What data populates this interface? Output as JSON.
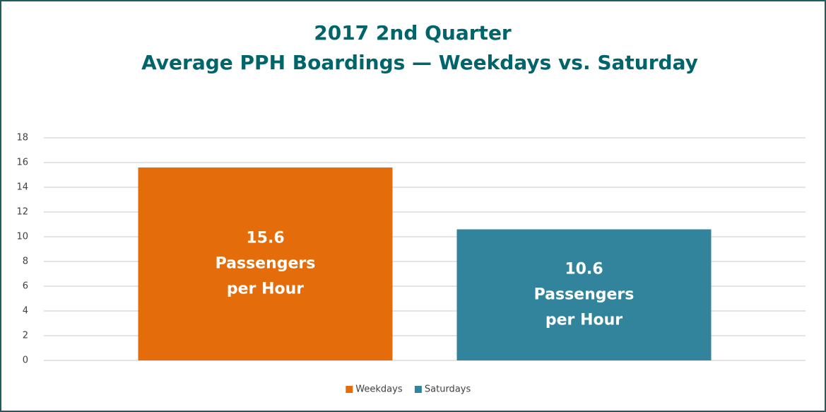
{
  "chart_data": {
    "type": "bar",
    "title": "2017 2nd Quarter",
    "subtitle": "Average PPH Boardings — Weekdays vs. Saturday",
    "categories": [
      null
    ],
    "series": [
      {
        "name": "Weekdays",
        "color": "#e46c0a",
        "values": [
          15.6
        ],
        "value_labels": [
          [
            "15.6",
            "Passengers",
            "per Hour"
          ]
        ]
      },
      {
        "name": "Saturdays",
        "color": "#31849b",
        "values": [
          10.6
        ],
        "value_labels": [
          [
            "10.6",
            "Passengers",
            "per Hour"
          ]
        ]
      }
    ],
    "ylim": [
      0,
      18
    ],
    "yticks": [
      0,
      2,
      4,
      6,
      8,
      10,
      12,
      14,
      16,
      18
    ],
    "grid": true,
    "legend": "bottom"
  }
}
